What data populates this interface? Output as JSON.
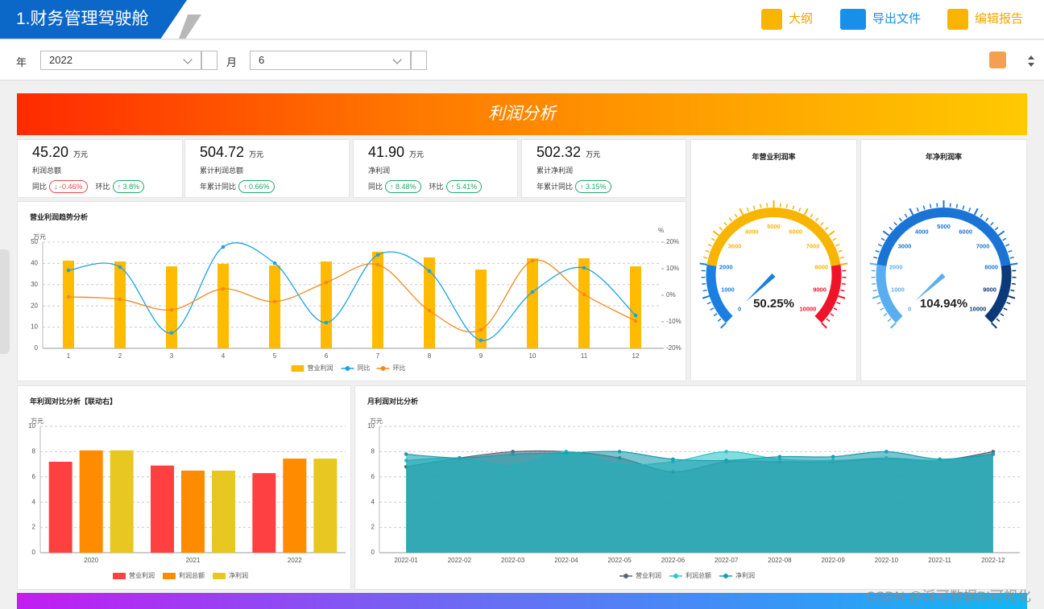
{
  "header": {
    "title": "1.财务管理驾驶舱",
    "actions": [
      "大纲",
      "导出文件",
      "编辑报告"
    ]
  },
  "filters": [
    {
      "label": "年",
      "value": "2022"
    },
    {
      "label": "月",
      "value": "6"
    }
  ],
  "banner": "利润分析",
  "kpis": [
    {
      "value": "45.20",
      "unit": "万元",
      "name": "利润总额",
      "compare": [
        {
          "label": "同比",
          "value": "↓ -0.46%",
          "color": "#e84a4a"
        },
        {
          "label": "环比",
          "value": "↑ 3.8%",
          "color": "#1fa866"
        }
      ]
    },
    {
      "value": "504.72",
      "unit": "万元",
      "name": "累计利润总额",
      "compare": [
        {
          "label": "年累计同比",
          "value": "↑ 0.66%",
          "color": "#1fa866"
        }
      ]
    },
    {
      "value": "41.90",
      "unit": "万元",
      "name": "净利润",
      "compare": [
        {
          "label": "同比",
          "value": "↑ 8.48%",
          "color": "#1fa866"
        },
        {
          "label": "环比",
          "value": "↑ 5.41%",
          "color": "#1fa866"
        }
      ]
    },
    {
      "value": "502.32",
      "unit": "万元",
      "name": "累计净利润",
      "compare": [
        {
          "label": "年累计同比",
          "value": "↑ 3.15%",
          "color": "#1fa866"
        }
      ]
    }
  ],
  "chart_data": [
    {
      "type": "combo",
      "title": "营业利润趋势分析",
      "y_label": "万元",
      "y2_label": "%",
      "categories": [
        "1",
        "2",
        "3",
        "4",
        "5",
        "6",
        "7",
        "8",
        "9",
        "10",
        "11",
        "12"
      ],
      "ylim": [
        0,
        50
      ],
      "yticks": [
        0,
        10,
        20,
        30,
        40,
        50
      ],
      "y2lim": [
        -20,
        20
      ],
      "y2ticks": [
        {
          "value": -20,
          "label": "-20%"
        },
        {
          "value": -10,
          "label": "-10%"
        },
        {
          "value": 0,
          "label": "0%"
        },
        {
          "value": 10,
          "label": "10%"
        },
        {
          "value": 20,
          "label": "20%"
        }
      ],
      "grid": true,
      "series": [
        {
          "name": "营业利润",
          "type": "bar",
          "color": "#ffbb00",
          "values": [
            41.3,
            40.9,
            38.6,
            39.8,
            39.0,
            40.9,
            45.5,
            42.8,
            37.1,
            42.4,
            42.4,
            38.6
          ]
        },
        {
          "name": "同比",
          "type": "line",
          "axis": "y2",
          "color": "#1aa3e8",
          "values": [
            9.4,
            10.6,
            -14.2,
            18.2,
            12.1,
            -10.3,
            15.2,
            9.1,
            -17.0,
            1.2,
            10.3,
            -7.6
          ]
        },
        {
          "name": "环比",
          "type": "line",
          "axis": "y2",
          "color": "#f5891f",
          "values": [
            -0.6,
            -1.5,
            -5.5,
            2.4,
            -2.4,
            4.8,
            11.5,
            -5.8,
            -13.0,
            13.0,
            0.3,
            -9.7
          ]
        }
      ]
    },
    {
      "type": "gauge",
      "title": "年营业利润率",
      "value": 50.25,
      "value_label": "50.25%",
      "ylim": [
        0,
        10000
      ],
      "yticks": [
        0,
        1000,
        2000,
        3000,
        4000,
        5000,
        6000,
        7000,
        8000,
        9000,
        10000
      ],
      "bands": [
        {
          "to": 2000,
          "color": "#1a7fe0"
        },
        {
          "to": 8000,
          "color": "#f7b500"
        },
        {
          "to": 10000,
          "color": "#f0142a"
        }
      ]
    },
    {
      "type": "gauge",
      "title": "年净利润率",
      "value": 104.94,
      "value_label": "104.94%",
      "ylim": [
        0,
        10000
      ],
      "yticks": [
        0,
        1000,
        2000,
        3000,
        4000,
        5000,
        6000,
        7000,
        8000,
        9000,
        10000
      ],
      "bands": [
        {
          "to": 2000,
          "color": "#5aaef0"
        },
        {
          "to": 8000,
          "color": "#1a74d6"
        },
        {
          "to": 10000,
          "color": "#0a3a78"
        }
      ]
    },
    {
      "type": "grouped-bar",
      "title": "年利润对比分析【联动右】",
      "y_label": "万元",
      "categories": [
        "2020",
        "2021",
        "2022"
      ],
      "ylim": [
        0,
        10
      ],
      "yticks": [
        0,
        2,
        4,
        6,
        8,
        10
      ],
      "grid": true,
      "series": [
        {
          "name": "营业利润",
          "color": "#ff4040",
          "values": [
            7.2,
            6.9,
            6.3
          ]
        },
        {
          "name": "利润总额",
          "color": "#ff8c00",
          "values": [
            8.1,
            6.5,
            7.45
          ]
        },
        {
          "name": "净利润",
          "color": "#e8c820",
          "values": [
            8.1,
            6.5,
            7.45
          ]
        }
      ]
    },
    {
      "type": "area",
      "title": "月利润对比分析",
      "y_label": "万元",
      "categories": [
        "2022-01",
        "2022-02",
        "2022-03",
        "2022-04",
        "2022-05",
        "2022-06",
        "2022-07",
        "2022-08",
        "2022-09",
        "2022-10",
        "2022-11",
        "2022-12"
      ],
      "ylim": [
        0,
        10
      ],
      "yticks": [
        0,
        2,
        4,
        6,
        8,
        10
      ],
      "grid": true,
      "series": [
        {
          "name": "营业利润",
          "color": "#566673",
          "values": [
            6.8,
            7.5,
            8.0,
            8.0,
            7.5,
            6.4,
            7.2,
            7.2,
            7.2,
            7.45,
            7.3,
            8.0
          ]
        },
        {
          "name": "利润总额",
          "color": "#2ec7c9",
          "values": [
            7.3,
            7.5,
            6.9,
            8.0,
            7.0,
            7.2,
            8.0,
            7.4,
            7.3,
            7.5,
            7.3,
            7.8
          ]
        },
        {
          "name": "净利润",
          "color": "#1a9fb0",
          "values": [
            7.8,
            7.5,
            7.8,
            7.9,
            8.0,
            7.4,
            7.3,
            7.6,
            7.6,
            8.0,
            7.4,
            7.8
          ]
        }
      ]
    }
  ],
  "watermark": "CSDN @派可数据BI可视化"
}
